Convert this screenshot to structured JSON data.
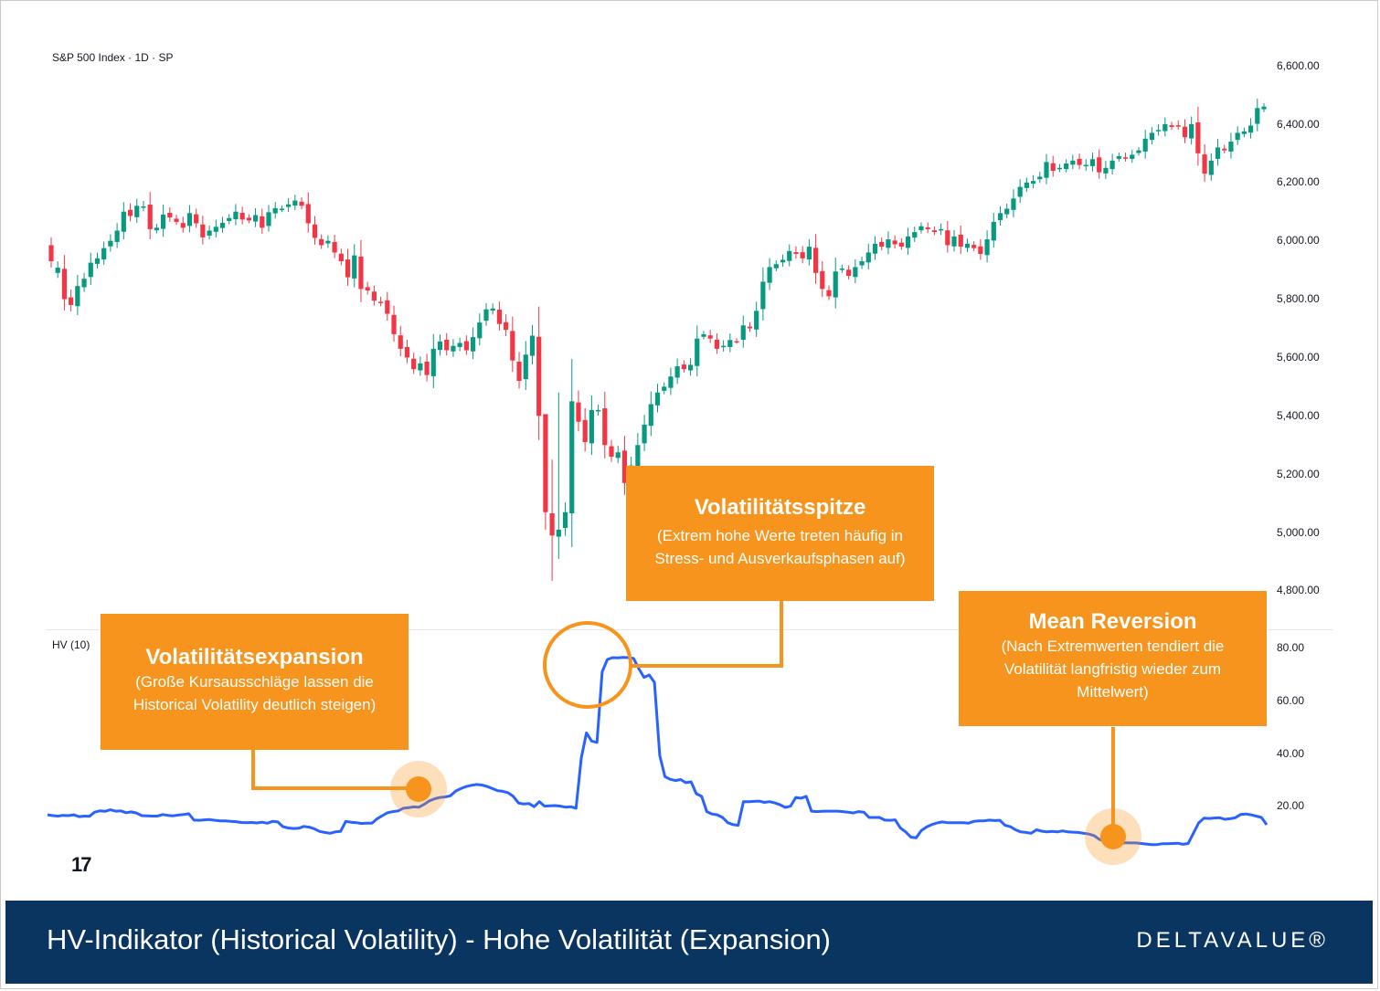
{
  "chart_data": [
    {
      "type": "candlestick",
      "title": "S&P 500 Index · 1D · SP",
      "ylim": [
        4720,
        6660
      ],
      "y_ticks": [
        "6,600.00",
        "6,400.00",
        "6,200.00",
        "6,000.00",
        "5,800.00",
        "5,600.00",
        "5,400.00",
        "5,200.00",
        "5,000.00",
        "4,800.00"
      ],
      "y_tick_values": [
        6600,
        6400,
        6200,
        6000,
        5800,
        5600,
        5400,
        5200,
        5000,
        4800
      ],
      "colors": {
        "up": "#089981",
        "down": "#f23645"
      },
      "closes": [
        5930,
        5908,
        5800,
        5780,
        5845,
        5870,
        5925,
        5940,
        5975,
        6000,
        6035,
        6100,
        6085,
        6120,
        6118,
        6040,
        6045,
        6090,
        6080,
        6065,
        6045,
        6095,
        6060,
        6012,
        6035,
        6048,
        6062,
        6078,
        6100,
        6073,
        6070,
        6088,
        6045,
        6098,
        6112,
        6110,
        6125,
        6138,
        6120,
        6060,
        6010,
        5985,
        6000,
        5960,
        5930,
        5875,
        5950,
        5835,
        5830,
        5795,
        5790,
        5750,
        5680,
        5630,
        5600,
        5560,
        5580,
        5540,
        5630,
        5655,
        5625,
        5640,
        5650,
        5625,
        5670,
        5720,
        5765,
        5768,
        5715,
        5695,
        5590,
        5520,
        5610,
        5675,
        5400,
        5070,
        4990,
        5010,
        5070,
        5450,
        5380,
        5310,
        5420,
        5420,
        5300,
        5260,
        5275,
        5170,
        5230,
        5300,
        5370,
        5440,
        5480,
        5500,
        5535,
        5570,
        5560,
        5575,
        5665,
        5680,
        5665,
        5630,
        5640,
        5660,
        5655,
        5710,
        5700,
        5760,
        5860,
        5910,
        5920,
        5935,
        5965,
        5955,
        5940,
        5980,
        5890,
        5835,
        5810,
        5895,
        5905,
        5880,
        5910,
        5930,
        5960,
        5990,
        5980,
        6005,
        5988,
        5980,
        6015,
        6030,
        6050,
        6040,
        6030,
        6040,
        5985,
        6015,
        5980,
        5990,
        5975,
        5955,
        6005,
        6065,
        6095,
        6110,
        6145,
        6185,
        6200,
        6205,
        6220,
        6270,
        6240,
        6250,
        6265,
        6275,
        6260,
        6260,
        6280,
        6235,
        6250,
        6275,
        6290,
        6285,
        6295,
        6310,
        6350,
        6370,
        6380,
        6400,
        6390,
        6395,
        6355,
        6400,
        6300,
        6230,
        6275,
        6320,
        6310,
        6340,
        6370,
        6375,
        6395,
        6455,
        6460
      ],
      "ohlc_sample": [
        {
          "o": 5985,
          "h": 5995,
          "l": 5895,
          "c": 5930
        },
        {
          "o": 5890,
          "h": 5970,
          "l": 4835,
          "c": 4990
        }
      ]
    },
    {
      "type": "line",
      "title": "HV (10)",
      "ylim": [
        0,
        90
      ],
      "y_ticks": [
        "80.00",
        "60.00",
        "40.00",
        "20.00"
      ],
      "y_tick_values": [
        80,
        60,
        40,
        20
      ],
      "series": [
        {
          "color": "#2962ff",
          "values": [
            16.5,
            16.2,
            16,
            16.3,
            16.2,
            16.5,
            15.8,
            16,
            15.9,
            17.5,
            18,
            17.8,
            18.4,
            17.9,
            18,
            17.3,
            17.6,
            17.2,
            16.2,
            16.1,
            16,
            16,
            16.6,
            16.3,
            16.1,
            16.4,
            16.6,
            16.9,
            14.5,
            14.4,
            14.6,
            14.7,
            14.4,
            14.2,
            14.2,
            14,
            13.9,
            13.6,
            13.5,
            13.6,
            13.4,
            13.7,
            13.3,
            14,
            13.8,
            12,
            11.5,
            11.3,
            11.4,
            12.1,
            11.8,
            11.2,
            10.2,
            9.8,
            9.5,
            10,
            10.2,
            14,
            13.7,
            13.5,
            13.2,
            13.3,
            13.3,
            15,
            16.2,
            17.3,
            17.7,
            18,
            19,
            19.2,
            19.5,
            19.4,
            20.5,
            21.8,
            22.6,
            23.1,
            23.3,
            23.7,
            25.5,
            26.5,
            27.2,
            27.7,
            28,
            27.8,
            27.3,
            26.5,
            25.7,
            25.4,
            24.9,
            23.5,
            21,
            20.6,
            20.8,
            19.6,
            21.5,
            19.8,
            19.9,
            20,
            19.8,
            19.4,
            19.6,
            19,
            38,
            47.6,
            44.5,
            44,
            70.8,
            75.5,
            76.2,
            76.1,
            76.3,
            76.2,
            75.9,
            72,
            68.7,
            69.6,
            66.8,
            39,
            31,
            30,
            29.5,
            29.9,
            28.7,
            29,
            24.5,
            23.5,
            17.7,
            16.8,
            16.5,
            15.5,
            13.5,
            12.8,
            12.5,
            21.5,
            21.5,
            21.6,
            21.7,
            21.2,
            21.5,
            21,
            20.3,
            19.3,
            19.8,
            23.1,
            22.8,
            23.5,
            17.9,
            17.7,
            17.8,
            17.9,
            17.9,
            17.9,
            17.7,
            17.5,
            17.2,
            17.7,
            17.5,
            15.5,
            15.5,
            15.5,
            14.5,
            14.4,
            14.6,
            11.5,
            10,
            8,
            7.8,
            10.5,
            11.9,
            12.8,
            13.4,
            13.8,
            13.5,
            13.5,
            13.5,
            13.5,
            13.3,
            14,
            14.2,
            14.2,
            14.5,
            14.3,
            14.4,
            12.5,
            12,
            10.8,
            10,
            9.8,
            9.5,
            10.8,
            10.3,
            10,
            10.2,
            10,
            10.4,
            10,
            9.9,
            9.8,
            9.5,
            9.2,
            8.6,
            7.2,
            6.5,
            6,
            5.8,
            5.5,
            5.9,
            5.8,
            5.8,
            5.6,
            5.4,
            5.2,
            5.2,
            5.5,
            5.5,
            5.6,
            5.7,
            5.3,
            5.6,
            9.5,
            13.4,
            15.2,
            15.1,
            15.3,
            15.4,
            14.8,
            15,
            15.4,
            16.6,
            16.8,
            16.5,
            16,
            15.5,
            12.7
          ]
        }
      ]
    }
  ],
  "annotations": [
    {
      "title": "Volatilitätsspitze",
      "text": [
        "(Extrem hohe Werte treten häufig in",
        "Stress- und Ausverkaufsphasen auf)"
      ]
    },
    {
      "title": "Volatilitätsexpansion",
      "text": [
        "(Große Kursausschläge lassen die",
        "Historical Volatility deutlich steigen)"
      ]
    },
    {
      "title": "Mean Reversion",
      "text": [
        "(Nach Extremwerten tendiert die",
        "Volatilität langfristig wieder zum",
        "Mittelwert)"
      ]
    }
  ],
  "accent_color": "#f7941d",
  "footer": {
    "title": "HV-Indikator (Historical Volatility) - Hohe Volatilität (Expansion)",
    "brand": "DELTAVALUE®",
    "background": "#0a3560"
  },
  "tv_logo": "17"
}
